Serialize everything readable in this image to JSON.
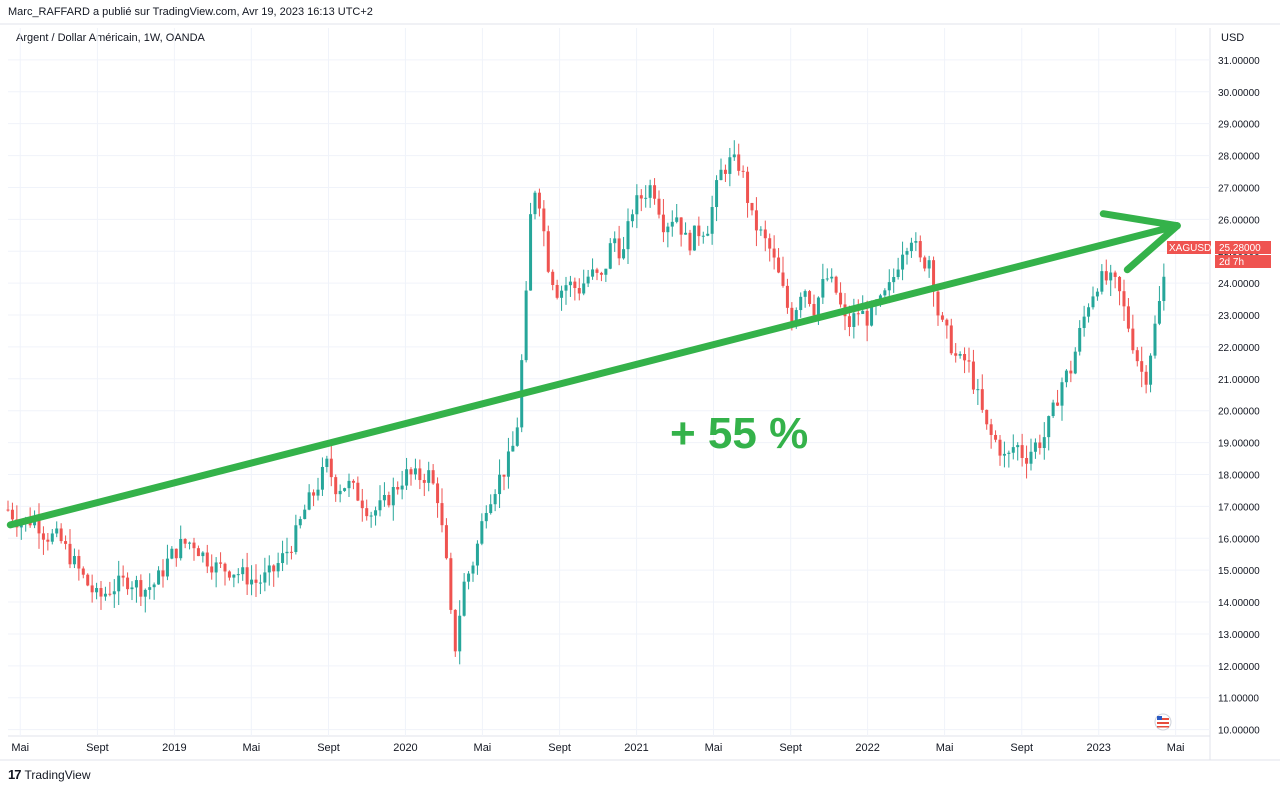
{
  "header": {
    "publish_line": "Marc_RAFFARD a publié sur TradingView.com, Avr 19, 2023 16:13 UTC+2",
    "symbol_line": "Argent / Dollar Américain, 1W, OANDA",
    "currency": "USD"
  },
  "footer": {
    "brand": "TradingView",
    "logo_glyph": "17"
  },
  "price_tag": {
    "ticker": "XAGUSD",
    "price": "25.28000",
    "countdown": "2d 7h"
  },
  "annotation": {
    "text": "+ 55 %"
  },
  "colors": {
    "up": "#26a69a",
    "down": "#ef5350",
    "arrow": "#34b24a",
    "grid": "#f0f3fa",
    "axis_text": "#131722",
    "tag": "#ef5350"
  },
  "chart_data": {
    "type": "candlestick",
    "title": "Argent / Dollar Américain, 1W, OANDA",
    "ylabel": "USD",
    "ylim": [
      9.8,
      32.0
    ],
    "y_ticks": [
      "31.00000",
      "30.00000",
      "29.00000",
      "28.00000",
      "27.00000",
      "26.00000",
      "25.00000",
      "24.00000",
      "23.00000",
      "22.00000",
      "21.00000",
      "20.00000",
      "19.00000",
      "18.00000",
      "17.00000",
      "16.00000",
      "15.00000",
      "14.00000",
      "13.00000",
      "12.00000",
      "11.00000",
      "10.00000"
    ],
    "x_ticks": [
      {
        "label": "Mai",
        "t": 2018.333
      },
      {
        "label": "Sept",
        "t": 2018.667
      },
      {
        "label": "2019",
        "t": 2019.0
      },
      {
        "label": "Mai",
        "t": 2019.333
      },
      {
        "label": "Sept",
        "t": 2019.667
      },
      {
        "label": "2020",
        "t": 2020.0
      },
      {
        "label": "Mai",
        "t": 2020.333
      },
      {
        "label": "Sept",
        "t": 2020.667
      },
      {
        "label": "2021",
        "t": 2021.0
      },
      {
        "label": "Mai",
        "t": 2021.333
      },
      {
        "label": "Sept",
        "t": 2021.667
      },
      {
        "label": "2022",
        "t": 2022.0
      },
      {
        "label": "Mai",
        "t": 2022.333
      },
      {
        "label": "Sept",
        "t": 2022.667
      },
      {
        "label": "2023",
        "t": 2023.0
      },
      {
        "label": "Mai",
        "t": 2023.333
      }
    ],
    "x_range": [
      2018.28,
      2023.46
    ],
    "close_path": [
      [
        2018.28,
        16.9
      ],
      [
        2018.33,
        16.5
      ],
      [
        2018.4,
        16.6
      ],
      [
        2018.44,
        16.1
      ],
      [
        2018.5,
        16.0
      ],
      [
        2018.56,
        15.3
      ],
      [
        2018.62,
        14.6
      ],
      [
        2018.67,
        14.1
      ],
      [
        2018.72,
        14.4
      ],
      [
        2018.8,
        14.7
      ],
      [
        2018.87,
        14.4
      ],
      [
        2018.92,
        14.6
      ],
      [
        2018.98,
        15.4
      ],
      [
        2019.03,
        15.8
      ],
      [
        2019.08,
        15.9
      ],
      [
        2019.12,
        15.5
      ],
      [
        2019.18,
        15.1
      ],
      [
        2019.25,
        15.0
      ],
      [
        2019.31,
        14.8
      ],
      [
        2019.36,
        14.6
      ],
      [
        2019.42,
        14.9
      ],
      [
        2019.47,
        15.4
      ],
      [
        2019.52,
        16.0
      ],
      [
        2019.57,
        17.0
      ],
      [
        2019.61,
        17.5
      ],
      [
        2019.66,
        18.3
      ],
      [
        2019.7,
        17.6
      ],
      [
        2019.75,
        17.7
      ],
      [
        2019.8,
        17.3
      ],
      [
        2019.85,
        16.8
      ],
      [
        2019.9,
        17.0
      ],
      [
        2019.95,
        17.5
      ],
      [
        2020.0,
        18.0
      ],
      [
        2020.05,
        17.9
      ],
      [
        2020.1,
        18.0
      ],
      [
        2020.14,
        17.3
      ],
      [
        2020.18,
        15.0
      ],
      [
        2020.21,
        12.3
      ],
      [
        2020.25,
        14.5
      ],
      [
        2020.3,
        15.4
      ],
      [
        2020.35,
        17.1
      ],
      [
        2020.4,
        17.8
      ],
      [
        2020.44,
        18.3
      ],
      [
        2020.48,
        19.2
      ],
      [
        2020.52,
        23.2
      ],
      [
        2020.55,
        27.2
      ],
      [
        2020.58,
        26.6
      ],
      [
        2020.62,
        24.5
      ],
      [
        2020.66,
        23.7
      ],
      [
        2020.7,
        24.0
      ],
      [
        2020.75,
        23.8
      ],
      [
        2020.8,
        24.3
      ],
      [
        2020.85,
        24.1
      ],
      [
        2020.9,
        25.5
      ],
      [
        2020.94,
        24.8
      ],
      [
        2020.98,
        26.3
      ],
      [
        2021.03,
        26.8
      ],
      [
        2021.07,
        27.1
      ],
      [
        2021.12,
        25.8
      ],
      [
        2021.17,
        26.2
      ],
      [
        2021.22,
        25.2
      ],
      [
        2021.26,
        25.6
      ],
      [
        2021.31,
        25.8
      ],
      [
        2021.36,
        27.4
      ],
      [
        2021.4,
        27.8
      ],
      [
        2021.45,
        27.7
      ],
      [
        2021.5,
        26.0
      ],
      [
        2021.54,
        25.5
      ],
      [
        2021.58,
        25.0
      ],
      [
        2021.62,
        24.1
      ],
      [
        2021.67,
        22.8
      ],
      [
        2021.72,
        24.0
      ],
      [
        2021.77,
        23.2
      ],
      [
        2021.82,
        24.2
      ],
      [
        2021.86,
        23.8
      ],
      [
        2021.91,
        22.6
      ],
      [
        2021.96,
        23.1
      ],
      [
        2022.0,
        22.9
      ],
      [
        2022.05,
        23.3
      ],
      [
        2022.1,
        23.9
      ],
      [
        2022.15,
        25.1
      ],
      [
        2022.19,
        25.5
      ],
      [
        2022.23,
        24.6
      ],
      [
        2022.27,
        24.8
      ],
      [
        2022.31,
        22.8
      ],
      [
        2022.35,
        22.3
      ],
      [
        2022.39,
        21.5
      ],
      [
        2022.43,
        21.6
      ],
      [
        2022.47,
        20.6
      ],
      [
        2022.52,
        19.3
      ],
      [
        2022.56,
        19.0
      ],
      [
        2022.6,
        18.4
      ],
      [
        2022.64,
        19.0
      ],
      [
        2022.68,
        18.5
      ],
      [
        2022.72,
        18.9
      ],
      [
        2022.76,
        19.1
      ],
      [
        2022.8,
        19.9
      ],
      [
        2022.84,
        20.9
      ],
      [
        2022.88,
        21.3
      ],
      [
        2022.92,
        22.5
      ],
      [
        2022.96,
        23.5
      ],
      [
        2023.0,
        24.1
      ],
      [
        2023.04,
        24.1
      ],
      [
        2023.08,
        23.9
      ],
      [
        2023.12,
        22.9
      ],
      [
        2023.16,
        21.8
      ],
      [
        2023.2,
        20.9
      ],
      [
        2023.24,
        22.5
      ],
      [
        2023.28,
        24.0
      ],
      [
        2023.3,
        25.28
      ]
    ],
    "annotation_arrow_start": {
      "t": 2018.29,
      "price": 16.42
    },
    "annotation_arrow_end": {
      "t": 2023.34,
      "price": 25.8
    }
  }
}
